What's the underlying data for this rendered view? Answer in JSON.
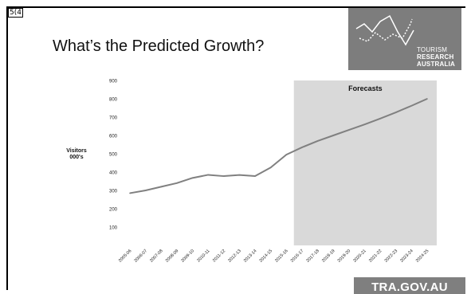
{
  "slide": {
    "number": "5(4",
    "title": "What’s the Predicted Growth?"
  },
  "logo": {
    "line1": "TOURISM",
    "line2": "RESEARCH",
    "line3": "AUSTRALIA",
    "icon": "trend-lines-icon",
    "background": "#7d7d7d"
  },
  "footer": {
    "url": "TRA.GOV.AU",
    "background": "#7f7f7f"
  },
  "chart_data": {
    "type": "line",
    "title": "",
    "ylabel": "Visitors\n000's",
    "xlabel": "",
    "ylim": [
      0,
      900
    ],
    "yticks": [
      100,
      200,
      300,
      400,
      500,
      600,
      700,
      800,
      900
    ],
    "grid": false,
    "categories": [
      "2005-06",
      "2006-07",
      "2007-08",
      "2008-09",
      "2009-10",
      "2010-11",
      "2011-12",
      "2012-13",
      "2013-14",
      "2014-15",
      "2015-16",
      "2016-17",
      "2017-18",
      "2018-19",
      "2019-20",
      "2020-21",
      "2021-22",
      "2022-23",
      "2023-24",
      "2024-25"
    ],
    "series": [
      {
        "values": [
          285,
          300,
          320,
          340,
          368,
          385,
          378,
          384,
          378,
          425,
          495,
          535,
          570,
          600,
          630,
          660,
          692,
          726,
          762,
          800
        ]
      }
    ],
    "forecast": {
      "label": "Forecasts",
      "start": "2016-17",
      "end": "2024-25"
    },
    "colors": {
      "line": "#808080",
      "forecast_band": "#d9d9d9"
    }
  }
}
